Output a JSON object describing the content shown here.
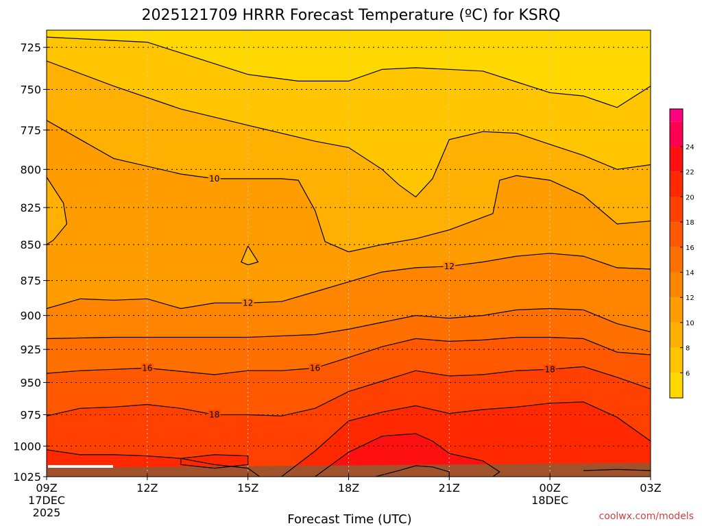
{
  "chart_data": {
    "type": "heatmap",
    "title": "2025121709 HRRR Forecast Temperature (ºC) for KSRQ",
    "xlabel": "Forecast Time (UTC)",
    "ylabel": "",
    "credit": "coolwx.com/models",
    "x_ticks": [
      {
        "hour": 9,
        "label": "09Z",
        "sub1": "17DEC",
        "sub2": "2025"
      },
      {
        "hour": 12,
        "label": "12Z",
        "sub1": "",
        "sub2": ""
      },
      {
        "hour": 15,
        "label": "15Z",
        "sub1": "",
        "sub2": ""
      },
      {
        "hour": 18,
        "label": "18Z",
        "sub1": "",
        "sub2": ""
      },
      {
        "hour": 21,
        "label": "21Z",
        "sub1": "",
        "sub2": ""
      },
      {
        "hour": 24,
        "label": "00Z",
        "sub1": "18DEC",
        "sub2": ""
      },
      {
        "hour": 27,
        "label": "03Z",
        "sub1": "",
        "sub2": ""
      }
    ],
    "y_ticks": [
      725,
      750,
      775,
      800,
      825,
      850,
      875,
      900,
      925,
      950,
      975,
      1000,
      1025
    ],
    "xlim": [
      9,
      27
    ],
    "ylim": [
      1025,
      715
    ],
    "y_scale": "log-pressure",
    "grid": true,
    "colorbar": {
      "ticks": [
        6,
        8,
        10,
        12,
        14,
        16,
        18,
        20,
        22,
        24
      ],
      "range": [
        4,
        27
      ],
      "colors": [
        "#ffd800",
        "#ffc600",
        "#ffb000",
        "#ff9c00",
        "#ff8400",
        "#ff7000",
        "#ff5800",
        "#ff4000",
        "#ff2800",
        "#ff1010",
        "#ff0050",
        "#ff0080"
      ]
    },
    "contours": [
      {
        "value": 6,
        "label": "",
        "points": [
          [
            9,
            719
          ],
          [
            12,
            722
          ],
          [
            15,
            741
          ],
          [
            16.5,
            745
          ],
          [
            18,
            745
          ],
          [
            19,
            738
          ],
          [
            20,
            737
          ],
          [
            22,
            739
          ],
          [
            24,
            752
          ],
          [
            25,
            754
          ],
          [
            26,
            761
          ],
          [
            27,
            748
          ]
        ]
      },
      {
        "value": 8,
        "label": "",
        "points": [
          [
            9,
            733
          ],
          [
            11,
            748
          ],
          [
            13,
            762
          ],
          [
            15,
            772
          ],
          [
            17,
            782
          ],
          [
            18,
            786
          ],
          [
            19,
            800
          ],
          [
            19.5,
            810
          ],
          [
            20,
            818
          ],
          [
            20.5,
            806
          ],
          [
            21,
            781
          ],
          [
            22,
            776
          ],
          [
            23,
            777
          ],
          [
            24,
            784
          ],
          [
            25,
            791
          ],
          [
            26,
            800
          ],
          [
            27,
            797
          ]
        ]
      },
      {
        "value": 10,
        "label": "10",
        "points": [
          [
            9,
            769
          ],
          [
            11,
            793
          ],
          [
            13,
            803
          ],
          [
            14,
            806
          ],
          [
            15,
            806
          ],
          [
            16,
            806
          ],
          [
            16.5,
            807
          ],
          [
            17,
            827
          ],
          [
            17.3,
            848
          ],
          [
            18,
            855
          ],
          [
            19,
            850
          ],
          [
            20,
            846
          ],
          [
            21,
            840
          ],
          [
            22.3,
            829
          ],
          [
            22.5,
            807
          ],
          [
            23,
            804
          ],
          [
            24,
            807
          ],
          [
            25,
            817
          ],
          [
            26,
            836
          ],
          [
            27,
            834
          ]
        ]
      },
      {
        "value": 10,
        "label": "",
        "points": [
          [
            9,
            805
          ],
          [
            9.5,
            822
          ],
          [
            9.6,
            836
          ],
          [
            9.2,
            847
          ],
          [
            9,
            850
          ]
        ]
      },
      {
        "value": 10,
        "label": "",
        "points": [
          [
            15,
            851
          ],
          [
            15.3,
            862
          ],
          [
            15,
            864
          ],
          [
            14.8,
            862
          ],
          [
            15,
            851
          ]
        ]
      },
      {
        "value": 12,
        "label": "12",
        "points": [
          [
            9,
            895
          ],
          [
            10,
            888
          ],
          [
            11,
            889
          ],
          [
            12,
            888
          ],
          [
            13,
            895
          ],
          [
            14,
            891
          ],
          [
            15,
            891
          ],
          [
            16,
            890
          ],
          [
            17,
            883
          ],
          [
            18,
            876
          ],
          [
            19,
            869
          ],
          [
            20,
            866
          ],
          [
            21,
            865
          ],
          [
            22,
            862
          ],
          [
            23,
            858
          ],
          [
            24,
            856
          ],
          [
            25,
            858
          ],
          [
            26,
            866
          ],
          [
            27,
            867
          ]
        ]
      },
      {
        "value": 14,
        "label": "",
        "points": [
          [
            9,
            917
          ],
          [
            11,
            916
          ],
          [
            13,
            916
          ],
          [
            15,
            916
          ],
          [
            17,
            914
          ],
          [
            18,
            910
          ],
          [
            19,
            905
          ],
          [
            20,
            900
          ],
          [
            21,
            902
          ],
          [
            22,
            900
          ],
          [
            23,
            896
          ],
          [
            24,
            895
          ],
          [
            25,
            896
          ],
          [
            26,
            906
          ],
          [
            27,
            912
          ]
        ]
      },
      {
        "value": 16,
        "label": "16",
        "points": [
          [
            9,
            943
          ],
          [
            10,
            941
          ],
          [
            11,
            940
          ],
          [
            12,
            939
          ],
          [
            14,
            944
          ],
          [
            15,
            941
          ],
          [
            16,
            941
          ],
          [
            17,
            939
          ],
          [
            18,
            931
          ],
          [
            19,
            923
          ],
          [
            20,
            917
          ],
          [
            21,
            919
          ],
          [
            22,
            918
          ],
          [
            23,
            916
          ],
          [
            24,
            916
          ],
          [
            25,
            917
          ],
          [
            26,
            927
          ],
          [
            27,
            929
          ]
        ]
      },
      {
        "value": 18,
        "label": "18",
        "points": [
          [
            9,
            976
          ],
          [
            10,
            970
          ],
          [
            11,
            969
          ],
          [
            12,
            967
          ],
          [
            13,
            970
          ],
          [
            14,
            975
          ],
          [
            15,
            975
          ],
          [
            16,
            976
          ],
          [
            17,
            970
          ],
          [
            18,
            957
          ],
          [
            19,
            949
          ],
          [
            20,
            941
          ],
          [
            21,
            945
          ],
          [
            22,
            944
          ],
          [
            23,
            941
          ],
          [
            24,
            940
          ],
          [
            25,
            938
          ],
          [
            26,
            946
          ],
          [
            27,
            955
          ]
        ]
      },
      {
        "value": 20,
        "label": "",
        "points": [
          [
            9,
            1003
          ],
          [
            10,
            1007
          ],
          [
            11,
            1007
          ],
          [
            12,
            1008
          ],
          [
            13,
            1010
          ],
          [
            14,
            1015
          ],
          [
            15,
            1018
          ],
          [
            15.5,
            1028
          ],
          [
            16,
            1025
          ],
          [
            17,
            1004
          ],
          [
            18,
            980
          ],
          [
            19,
            973
          ],
          [
            20,
            968
          ],
          [
            21,
            974
          ],
          [
            22,
            971
          ],
          [
            23,
            969
          ],
          [
            24,
            966
          ],
          [
            25,
            965
          ],
          [
            26,
            977
          ],
          [
            27,
            996
          ]
        ]
      },
      {
        "value": 20,
        "label": "",
        "points": [
          [
            13,
            1010
          ],
          [
            14,
            1007
          ],
          [
            15,
            1008
          ],
          [
            15,
            1015
          ],
          [
            14,
            1018
          ],
          [
            13,
            1015
          ],
          [
            13,
            1010
          ]
        ]
      },
      {
        "value": 22,
        "label": "",
        "points": [
          [
            17,
            1025
          ],
          [
            18,
            1005
          ],
          [
            19,
            992
          ],
          [
            20,
            990
          ],
          [
            20.5,
            996
          ],
          [
            21,
            1006
          ],
          [
            22,
            1012
          ],
          [
            22.5,
            1021
          ],
          [
            22.3,
            1025
          ]
        ]
      },
      {
        "value": 24,
        "label": "",
        "points": [
          [
            18.8,
            1025
          ],
          [
            19.5,
            1020
          ],
          [
            20,
            1016
          ],
          [
            20.5,
            1017
          ],
          [
            21,
            1021
          ],
          [
            21,
            1025
          ]
        ]
      },
      {
        "value": 18,
        "label": "",
        "points": [
          [
            25,
            1020
          ],
          [
            26,
            1019
          ],
          [
            27,
            1020
          ]
        ]
      }
    ]
  }
}
